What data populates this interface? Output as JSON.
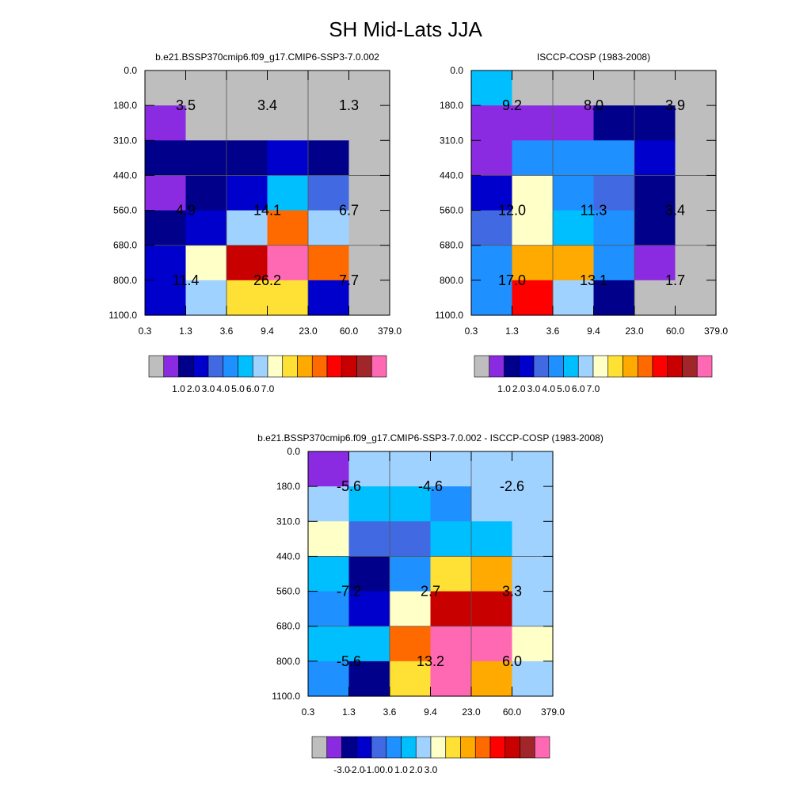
{
  "title": "SH Mid-Lats JJA",
  "palette": [
    "#bebebe",
    "#8a2be2",
    "#00008b",
    "#0000cd",
    "#4169e1",
    "#1e90ff",
    "#00bfff",
    "#a0d2ff",
    "#ffffc8",
    "#ffe135",
    "#ffaa00",
    "#ff6a00",
    "#ff0000",
    "#c80000",
    "#a0262a",
    "#ff69b4"
  ],
  "chart_data": [
    {
      "type": "heatmap",
      "title": "b.e21.BSSP370cmip6.f09_g17.CMIP6-SSP3-7.0.002",
      "x_ticks": [
        "0.3",
        "1.3",
        "3.6",
        "9.4",
        "23.0",
        "60.0",
        "379.0"
      ],
      "y_ticks": [
        "0.0",
        "180.0",
        "310.0",
        "440.0",
        "560.0",
        "680.0",
        "800.0",
        "1100.0"
      ],
      "cells": [
        [
          0,
          0,
          0,
          0,
          0,
          0
        ],
        [
          1,
          0,
          0,
          0,
          0,
          0
        ],
        [
          2,
          2,
          2,
          3,
          2,
          0
        ],
        [
          1,
          2,
          3,
          6,
          4,
          0
        ],
        [
          2,
          3,
          7,
          11,
          7,
          0
        ],
        [
          3,
          8,
          13,
          15,
          11,
          0
        ],
        [
          3,
          7,
          9,
          9,
          3,
          0
        ]
      ],
      "annotations": [
        {
          "row": 1,
          "col": 1,
          "text": "3.5"
        },
        {
          "row": 1,
          "col": 3,
          "text": "3.4"
        },
        {
          "row": 1,
          "col": 5,
          "text": "1.3"
        },
        {
          "row": 4,
          "col": 1,
          "text": "4.9"
        },
        {
          "row": 4,
          "col": 3,
          "text": "14.1"
        },
        {
          "row": 4,
          "col": 5,
          "text": "6.7"
        },
        {
          "row": 6,
          "col": 1,
          "text": "11.4"
        },
        {
          "row": 6,
          "col": 3,
          "text": "26.2"
        },
        {
          "row": 6,
          "col": 5,
          "text": "7.7"
        }
      ],
      "colorbar_labels": [
        "1.0",
        "2.0",
        "3.0",
        "4.0",
        "5.0",
        "6.0",
        "7.0"
      ]
    },
    {
      "type": "heatmap",
      "title": "ISCCP-COSP (1983-2008)",
      "x_ticks": [
        "0.3",
        "1.3",
        "3.6",
        "9.4",
        "23.0",
        "60.0",
        "379.0"
      ],
      "y_ticks": [
        "0.0",
        "180.0",
        "310.0",
        "440.0",
        "560.0",
        "680.0",
        "800.0",
        "1100.0"
      ],
      "cells": [
        [
          6,
          0,
          0,
          0,
          0,
          0
        ],
        [
          1,
          1,
          1,
          2,
          2,
          0
        ],
        [
          1,
          5,
          5,
          5,
          3,
          0
        ],
        [
          3,
          8,
          5,
          4,
          2,
          0
        ],
        [
          4,
          8,
          6,
          5,
          2,
          0
        ],
        [
          5,
          10,
          10,
          5,
          1,
          0
        ],
        [
          5,
          12,
          7,
          2,
          0,
          0
        ]
      ],
      "annotations": [
        {
          "row": 1,
          "col": 1,
          "text": "9.2"
        },
        {
          "row": 1,
          "col": 3,
          "text": "8.0"
        },
        {
          "row": 1,
          "col": 5,
          "text": "3.9"
        },
        {
          "row": 4,
          "col": 1,
          "text": "12.0"
        },
        {
          "row": 4,
          "col": 3,
          "text": "11.3"
        },
        {
          "row": 4,
          "col": 5,
          "text": "3.4"
        },
        {
          "row": 6,
          "col": 1,
          "text": "17.0"
        },
        {
          "row": 6,
          "col": 3,
          "text": "13.1"
        },
        {
          "row": 6,
          "col": 5,
          "text": "1.7"
        }
      ],
      "colorbar_labels": [
        "1.0",
        "2.0",
        "3.0",
        "4.0",
        "5.0",
        "6.0",
        "7.0"
      ]
    },
    {
      "type": "heatmap",
      "title": "b.e21.BSSP370cmip6.f09_g17.CMIP6-SSP3-7.0.002 - ISCCP-COSP (1983-2008)",
      "x_ticks": [
        "0.3",
        "1.3",
        "3.6",
        "9.4",
        "23.0",
        "60.0",
        "379.0"
      ],
      "y_ticks": [
        "0.0",
        "180.0",
        "310.0",
        "440.0",
        "560.0",
        "680.0",
        "800.0",
        "1100.0"
      ],
      "cells": [
        [
          1,
          7,
          7,
          7,
          7,
          7
        ],
        [
          7,
          6,
          6,
          5,
          7,
          7
        ],
        [
          8,
          4,
          4,
          6,
          6,
          7
        ],
        [
          6,
          2,
          5,
          9,
          10,
          7
        ],
        [
          5,
          3,
          8,
          13,
          13,
          7
        ],
        [
          6,
          6,
          11,
          15,
          15,
          8
        ],
        [
          5,
          2,
          9,
          15,
          10,
          7
        ]
      ],
      "annotations": [
        {
          "row": 1,
          "col": 1,
          "text": "-5.6"
        },
        {
          "row": 1,
          "col": 3,
          "text": "-4.6"
        },
        {
          "row": 1,
          "col": 5,
          "text": "-2.6"
        },
        {
          "row": 4,
          "col": 1,
          "text": "-7.2"
        },
        {
          "row": 4,
          "col": 3,
          "text": "2.7"
        },
        {
          "row": 4,
          "col": 5,
          "text": "3.3"
        },
        {
          "row": 6,
          "col": 1,
          "text": "-5.6"
        },
        {
          "row": 6,
          "col": 3,
          "text": "13.2"
        },
        {
          "row": 6,
          "col": 5,
          "text": "6.0"
        }
      ],
      "colorbar_labels": [
        "-3.0",
        "-2.0",
        "-1.0",
        "0.0",
        "1.0",
        "2.0",
        "3.0"
      ]
    }
  ]
}
